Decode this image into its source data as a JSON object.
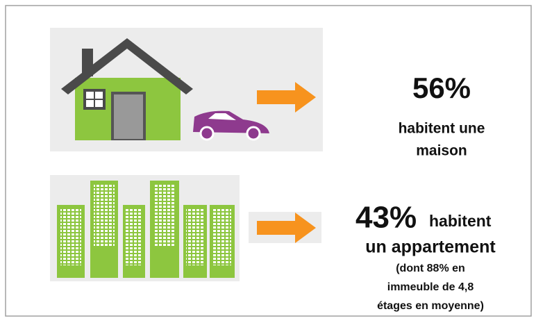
{
  "house": {
    "percent": "56%",
    "line1": "habitent une",
    "line2": "maison"
  },
  "apartment": {
    "percent": "43%",
    "line1": "habitent",
    "line2": "un appartement",
    "note1": "(dont 88% en",
    "note2": "immeuble de 4,8",
    "note3": "étages en moyenne)"
  }
}
